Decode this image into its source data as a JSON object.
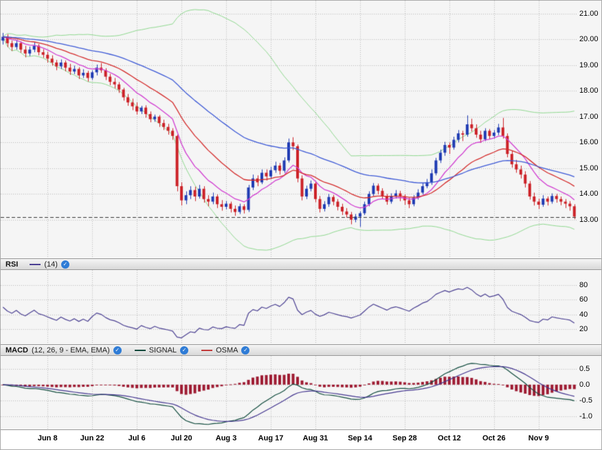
{
  "style": {
    "plot_bg": "#f5f5f5",
    "grid_color": "#b8b8b8",
    "panel_border_color": "#999999",
    "up_color": "#1f3bb3",
    "down_color": "#cc2127",
    "last_price_line_color": "#333333",
    "axis_text_color": "#000000",
    "toggle_icon_color": "#2f7cd6"
  },
  "icons": {
    "check_glyph": "✓"
  },
  "chart_data": {
    "type": "candlestick",
    "grid": true,
    "x": {
      "labels": [
        "Jun 8",
        "Jun 22",
        "Jul 6",
        "Jul 20",
        "Aug 3",
        "Aug 17",
        "Aug 31",
        "Sep 14",
        "Sep 28",
        "Oct 12",
        "Oct 26",
        "Nov 9"
      ],
      "label_indices": [
        10,
        20,
        30,
        40,
        50,
        60,
        70,
        80,
        90,
        100,
        110,
        120
      ],
      "num_candles": 129
    },
    "price": {
      "ylim": [
        11.5,
        21.5
      ],
      "ytick_values": [
        21,
        20,
        19,
        18,
        17,
        16,
        15,
        14,
        13
      ],
      "ytick_labels": [
        "21.00",
        "20.00",
        "19.00",
        "18.00",
        "17.00",
        "16.00",
        "15.00",
        "14.00",
        "13.00"
      ],
      "last_close_line": 13.1,
      "overlays": [
        {
          "name": "ma-fast-magenta",
          "kind": "ema",
          "period": 10,
          "color": "#d13bd1"
        },
        {
          "name": "ma-medium-red",
          "kind": "ema",
          "period": 22,
          "color": "#d42a2a"
        },
        {
          "name": "ma-slow-blue",
          "kind": "ema",
          "period": 50,
          "color": "#3a57d6"
        },
        {
          "name": "bollinger-bands-green",
          "kind": "bollinger",
          "period": 40,
          "mult": 2,
          "color": "#8fd98f"
        }
      ],
      "candles": [
        [
          19.95,
          20.25,
          19.8,
          20.1
        ],
        [
          20.1,
          20.2,
          19.7,
          19.85
        ],
        [
          19.85,
          19.95,
          19.55,
          19.7
        ],
        [
          19.7,
          19.98,
          19.6,
          19.85
        ],
        [
          19.85,
          19.92,
          19.48,
          19.6
        ],
        [
          19.6,
          19.75,
          19.3,
          19.45
        ],
        [
          19.45,
          19.72,
          19.35,
          19.6
        ],
        [
          19.6,
          19.88,
          19.5,
          19.75
        ],
        [
          19.75,
          19.82,
          19.38,
          19.5
        ],
        [
          19.5,
          19.62,
          19.28,
          19.4
        ],
        [
          19.4,
          19.52,
          19.1,
          19.25
        ],
        [
          19.25,
          19.38,
          18.98,
          19.1
        ],
        [
          19.1,
          19.2,
          18.8,
          18.95
        ],
        [
          18.95,
          19.22,
          18.85,
          19.1
        ],
        [
          19.1,
          19.18,
          18.76,
          18.9
        ],
        [
          18.9,
          19.05,
          18.62,
          18.75
        ],
        [
          18.75,
          18.98,
          18.65,
          18.85
        ],
        [
          18.85,
          18.92,
          18.46,
          18.6
        ],
        [
          18.6,
          18.84,
          18.5,
          18.7
        ],
        [
          18.7,
          18.78,
          18.36,
          18.5
        ],
        [
          18.5,
          18.8,
          18.42,
          18.72
        ],
        [
          18.72,
          19.02,
          18.6,
          18.9
        ],
        [
          18.9,
          19.08,
          18.7,
          18.8
        ],
        [
          18.8,
          18.88,
          18.42,
          18.55
        ],
        [
          18.55,
          18.66,
          18.22,
          18.35
        ],
        [
          18.35,
          18.5,
          18.1,
          18.25
        ],
        [
          18.25,
          18.34,
          17.92,
          18.05
        ],
        [
          18.05,
          18.12,
          17.62,
          17.75
        ],
        [
          17.75,
          17.88,
          17.42,
          17.55
        ],
        [
          17.55,
          17.7,
          17.25,
          17.4
        ],
        [
          17.4,
          17.55,
          17.08,
          17.2
        ],
        [
          17.2,
          17.42,
          17.1,
          17.35
        ],
        [
          17.35,
          17.44,
          16.96,
          17.1
        ],
        [
          17.1,
          17.2,
          16.78,
          16.9
        ],
        [
          16.9,
          17.08,
          16.8,
          17.0
        ],
        [
          17.0,
          17.06,
          16.6,
          16.75
        ],
        [
          16.75,
          16.88,
          16.48,
          16.6
        ],
        [
          16.6,
          16.72,
          16.3,
          16.45
        ],
        [
          16.45,
          16.55,
          16.1,
          16.25
        ],
        [
          16.25,
          16.3,
          14.1,
          14.3
        ],
        [
          14.3,
          14.45,
          13.55,
          13.75
        ],
        [
          13.75,
          14.1,
          13.6,
          13.95
        ],
        [
          13.95,
          14.3,
          13.8,
          14.15
        ],
        [
          14.15,
          14.28,
          13.72,
          13.9
        ],
        [
          13.9,
          14.35,
          13.82,
          14.2
        ],
        [
          14.2,
          14.3,
          13.66,
          13.8
        ],
        [
          13.8,
          13.95,
          13.52,
          13.7
        ],
        [
          13.7,
          14.05,
          13.6,
          13.9
        ],
        [
          13.9,
          13.98,
          13.45,
          13.6
        ],
        [
          13.6,
          13.76,
          13.35,
          13.5
        ],
        [
          13.5,
          13.72,
          13.4,
          13.62
        ],
        [
          13.62,
          13.7,
          13.28,
          13.42
        ],
        [
          13.42,
          13.55,
          13.15,
          13.3
        ],
        [
          13.3,
          13.62,
          13.22,
          13.52
        ],
        [
          13.52,
          13.6,
          13.24,
          13.38
        ],
        [
          13.38,
          14.35,
          13.3,
          14.25
        ],
        [
          14.25,
          14.75,
          14.15,
          14.6
        ],
        [
          14.6,
          14.72,
          14.3,
          14.45
        ],
        [
          14.45,
          14.95,
          14.38,
          14.82
        ],
        [
          14.82,
          14.95,
          14.52,
          14.68
        ],
        [
          14.68,
          15.05,
          14.58,
          14.92
        ],
        [
          14.92,
          15.25,
          14.82,
          15.1
        ],
        [
          15.1,
          15.2,
          14.75,
          14.9
        ],
        [
          14.9,
          15.42,
          14.82,
          15.3
        ],
        [
          15.3,
          16.15,
          15.22,
          16.0
        ],
        [
          16.0,
          16.2,
          15.7,
          15.85
        ],
        [
          15.85,
          15.92,
          14.45,
          14.6
        ],
        [
          14.6,
          14.72,
          13.75,
          13.9
        ],
        [
          13.9,
          14.32,
          13.8,
          14.2
        ],
        [
          14.2,
          14.52,
          14.1,
          14.4
        ],
        [
          14.4,
          14.48,
          13.68,
          13.8
        ],
        [
          13.8,
          13.92,
          13.28,
          13.42
        ],
        [
          13.42,
          13.72,
          13.32,
          13.6
        ],
        [
          13.6,
          14.0,
          13.5,
          13.88
        ],
        [
          13.88,
          13.96,
          13.56,
          13.7
        ],
        [
          13.7,
          13.8,
          13.36,
          13.5
        ],
        [
          13.5,
          13.62,
          13.18,
          13.32
        ],
        [
          13.32,
          13.45,
          13.08,
          13.2
        ],
        [
          13.2,
          13.3,
          12.82,
          13.0
        ],
        [
          13.0,
          13.22,
          12.9,
          13.12
        ],
        [
          13.12,
          13.32,
          12.72,
          13.25
        ],
        [
          13.25,
          13.7,
          13.18,
          13.6
        ],
        [
          13.6,
          14.1,
          13.52,
          14.0
        ],
        [
          14.0,
          14.42,
          13.92,
          14.32
        ],
        [
          14.32,
          14.4,
          13.98,
          14.12
        ],
        [
          14.12,
          14.22,
          13.8,
          13.92
        ],
        [
          13.92,
          14.0,
          13.58,
          13.7
        ],
        [
          13.7,
          14.02,
          13.62,
          13.92
        ],
        [
          13.92,
          14.15,
          13.82,
          14.02
        ],
        [
          14.02,
          14.12,
          13.72,
          13.9
        ],
        [
          13.9,
          13.98,
          13.58,
          13.75
        ],
        [
          13.75,
          13.85,
          13.45,
          13.6
        ],
        [
          13.6,
          13.95,
          13.52,
          13.85
        ],
        [
          13.85,
          14.18,
          13.78,
          14.05
        ],
        [
          14.05,
          14.42,
          13.98,
          14.3
        ],
        [
          14.3,
          14.58,
          14.22,
          14.45
        ],
        [
          14.45,
          14.95,
          14.35,
          14.8
        ],
        [
          14.8,
          15.4,
          14.72,
          15.3
        ],
        [
          15.3,
          15.72,
          15.2,
          15.6
        ],
        [
          15.6,
          16.02,
          15.48,
          15.9
        ],
        [
          15.9,
          16.0,
          15.55,
          15.8
        ],
        [
          15.8,
          16.22,
          15.72,
          16.1
        ],
        [
          16.1,
          16.48,
          16.0,
          16.35
        ],
        [
          16.35,
          16.45,
          16.05,
          16.3
        ],
        [
          16.3,
          17.05,
          16.22,
          16.7
        ],
        [
          16.7,
          16.92,
          16.42,
          16.55
        ],
        [
          16.55,
          16.7,
          16.18,
          16.3
        ],
        [
          16.3,
          16.45,
          15.98,
          16.12
        ],
        [
          16.12,
          16.55,
          16.05,
          16.45
        ],
        [
          16.45,
          16.52,
          16.12,
          16.25
        ],
        [
          16.25,
          16.48,
          16.15,
          16.38
        ],
        [
          16.38,
          16.72,
          16.28,
          16.58
        ],
        [
          16.58,
          16.95,
          16.15,
          16.25
        ],
        [
          16.25,
          16.35,
          15.42,
          15.55
        ],
        [
          15.55,
          15.68,
          15.02,
          15.15
        ],
        [
          15.15,
          15.32,
          14.82,
          14.95
        ],
        [
          14.95,
          15.1,
          14.6,
          14.75
        ],
        [
          14.75,
          14.88,
          14.25,
          14.4
        ],
        [
          14.4,
          14.5,
          13.78,
          13.9
        ],
        [
          13.9,
          14.05,
          13.55,
          13.7
        ],
        [
          13.7,
          13.82,
          13.42,
          13.58
        ],
        [
          13.58,
          13.95,
          13.5,
          13.82
        ],
        [
          13.82,
          13.9,
          13.55,
          13.7
        ],
        [
          13.7,
          14.02,
          13.62,
          13.92
        ],
        [
          13.92,
          14.0,
          13.66,
          13.8
        ],
        [
          13.8,
          13.9,
          13.56,
          13.7
        ],
        [
          13.7,
          13.8,
          13.45,
          13.62
        ],
        [
          13.62,
          13.72,
          13.35,
          13.52
        ],
        [
          13.52,
          13.6,
          13.02,
          13.12
        ]
      ]
    },
    "rsi": {
      "label": "RSI",
      "params": "(14)",
      "period": 14,
      "ylim": [
        0,
        100
      ],
      "ytick_values": [
        80,
        60,
        40,
        20
      ],
      "ytick_labels": [
        "80",
        "60",
        "40",
        "20"
      ],
      "line_color": "#4a3f92"
    },
    "macd": {
      "label": "MACD",
      "params": "(12, 26, 9 - EMA, EMA)",
      "fast": 12,
      "slow": 26,
      "signal_period": 9,
      "signal_label": "SIGNAL",
      "osma_label": "OSMA",
      "ylim": [
        -1.4,
        0.9
      ],
      "ytick_values": [
        0.5,
        0.0,
        -0.5,
        -1.0
      ],
      "ytick_labels": [
        "0.5",
        "0.0",
        "-0.5",
        "-1.0"
      ],
      "macd_color": "#0f4a3c",
      "signal_color": "#41338e",
      "osma_color": "#9e1b32",
      "legend_signal_sample_color": "#0f4a3c",
      "legend_osma_sample_color": "#c23b3b"
    }
  }
}
